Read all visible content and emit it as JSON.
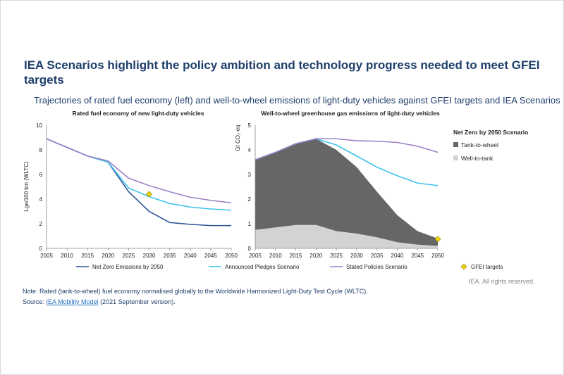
{
  "title": "IEA Scenarios highlight the policy ambition and technology progress needed to meet GFEI targets",
  "subtitle": "Trajectories of rated fuel economy (left) and well-to-wheel emissions of light-duty vehicles against GFEI targets and IEA Scenarios",
  "legend": {
    "nze": "Net Zero Emissions by 2050",
    "aps": "Announced Pledges Scenario",
    "steps": "Stated Policies Scenario",
    "gfei": "GFEI targets"
  },
  "note": "Note: Rated (tank-to-wheel) fuel economy normalised globally to the Worldwide Harmonized Light-Duty Test Cycle (WLTC).",
  "source_prefix": "Source: ",
  "source_link": "IEA Mobility Model",
  "source_suffix": " (2021 September version).",
  "credit": "IEA. All rights reserved.",
  "colors": {
    "nze": "#2f5597",
    "aps": "#3ec3ee",
    "steps": "#9b80c4",
    "ttw": "#666666",
    "wtt": "#d3d3d3",
    "gfei": "#f2d600"
  },
  "chart_data": [
    {
      "type": "line",
      "title": "Rated fuel economy of new light-duty vehicles",
      "ylabel": "Lge/100 km (WLTC)",
      "xlabel": "",
      "x": [
        2005,
        2010,
        2015,
        2020,
        2025,
        2030,
        2035,
        2040,
        2045,
        2050
      ],
      "xticks": [
        "2005",
        "2010",
        "2015",
        "2020",
        "2025",
        "2030",
        "2035",
        "2040",
        "2045",
        "2050"
      ],
      "yticks": [
        "0",
        "2",
        "4",
        "6",
        "8",
        "10"
      ],
      "ylim": [
        0,
        10
      ],
      "grid": false,
      "series": [
        {
          "name": "Net Zero Emissions by 2050",
          "key": "nze",
          "values": [
            8.9,
            8.2,
            7.5,
            7.0,
            4.6,
            3.0,
            2.1,
            1.95,
            1.85,
            1.85
          ]
        },
        {
          "name": "Announced Pledges Scenario",
          "key": "aps",
          "values": [
            8.9,
            8.2,
            7.5,
            7.0,
            4.9,
            4.2,
            3.65,
            3.35,
            3.2,
            3.1
          ]
        },
        {
          "name": "Stated Policies Scenario",
          "key": "steps",
          "values": [
            8.9,
            8.2,
            7.5,
            7.1,
            5.7,
            5.1,
            4.6,
            4.15,
            3.9,
            3.7
          ]
        }
      ],
      "markers": [
        {
          "name": "GFEI targets",
          "x": 2030,
          "y": 4.4
        }
      ]
    },
    {
      "type": "area",
      "title": "Well-to-wheel greenhouse gas emissions of light-duty vehicles",
      "ylabel": "Gt CO₂-eq",
      "xlabel": "",
      "x": [
        2005,
        2010,
        2015,
        2020,
        2025,
        2030,
        2035,
        2040,
        2045,
        2050
      ],
      "xticks": [
        "2005",
        "2010",
        "2015",
        "2020",
        "2025",
        "2030",
        "2035",
        "2040",
        "2045",
        "2050"
      ],
      "yticks": [
        "0",
        "1",
        "2",
        "3",
        "4",
        "5"
      ],
      "ylim": [
        0,
        5
      ],
      "grid": false,
      "legend_title": "Net Zero by 2050 Scenario",
      "stacked": [
        {
          "name": "Well-to-tank",
          "key": "wtt",
          "values": [
            0.75,
            0.85,
            0.95,
            0.95,
            0.7,
            0.6,
            0.45,
            0.25,
            0.15,
            0.1
          ]
        },
        {
          "name": "Tank-to-wheel",
          "key": "ttw",
          "values": [
            2.85,
            3.05,
            3.3,
            3.5,
            3.3,
            2.7,
            1.85,
            1.1,
            0.55,
            0.3
          ]
        }
      ],
      "series": [
        {
          "name": "Announced Pledges Scenario",
          "key": "aps",
          "values": [
            3.6,
            3.9,
            4.25,
            4.45,
            4.2,
            3.75,
            3.3,
            2.95,
            2.65,
            2.55
          ]
        },
        {
          "name": "Stated Policies Scenario",
          "key": "steps",
          "values": [
            3.6,
            3.9,
            4.25,
            4.45,
            4.45,
            4.37,
            4.35,
            4.3,
            4.15,
            3.9
          ]
        }
      ],
      "markers": [
        {
          "name": "GFEI targets",
          "x": 2050,
          "y": 0.38
        }
      ]
    }
  ]
}
